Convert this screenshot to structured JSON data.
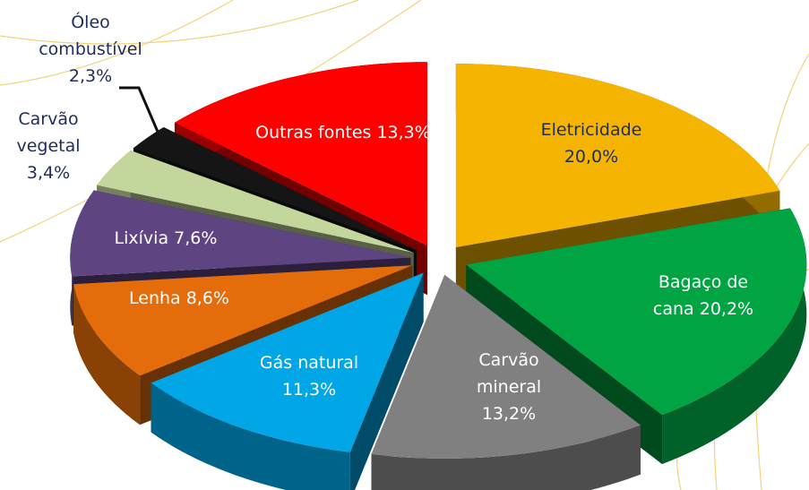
{
  "chart_data": {
    "type": "pie",
    "categories": [
      "Eletricidade",
      "Bagaço de cana",
      "Carvão mineral",
      "Gás natural",
      "Lenha",
      "Lixívia",
      "Carvão vegetal",
      "Óleo combustível",
      "Outras fontes"
    ],
    "values": [
      20.0,
      20.2,
      13.2,
      11.3,
      8.6,
      7.6,
      3.4,
      2.3,
      13.3
    ],
    "value_labels": [
      "20,0%",
      "20,2%",
      "13,2%",
      "11,3%",
      "8,6%",
      "7,6%",
      "3,4%",
      "2,3%",
      "13,3%"
    ],
    "colors": [
      "#f5b400",
      "#00a443",
      "#808080",
      "#00a6e6",
      "#e46c0a",
      "#5f4482",
      "#c3d69b",
      "#151515",
      "#ff0000"
    ]
  }
}
